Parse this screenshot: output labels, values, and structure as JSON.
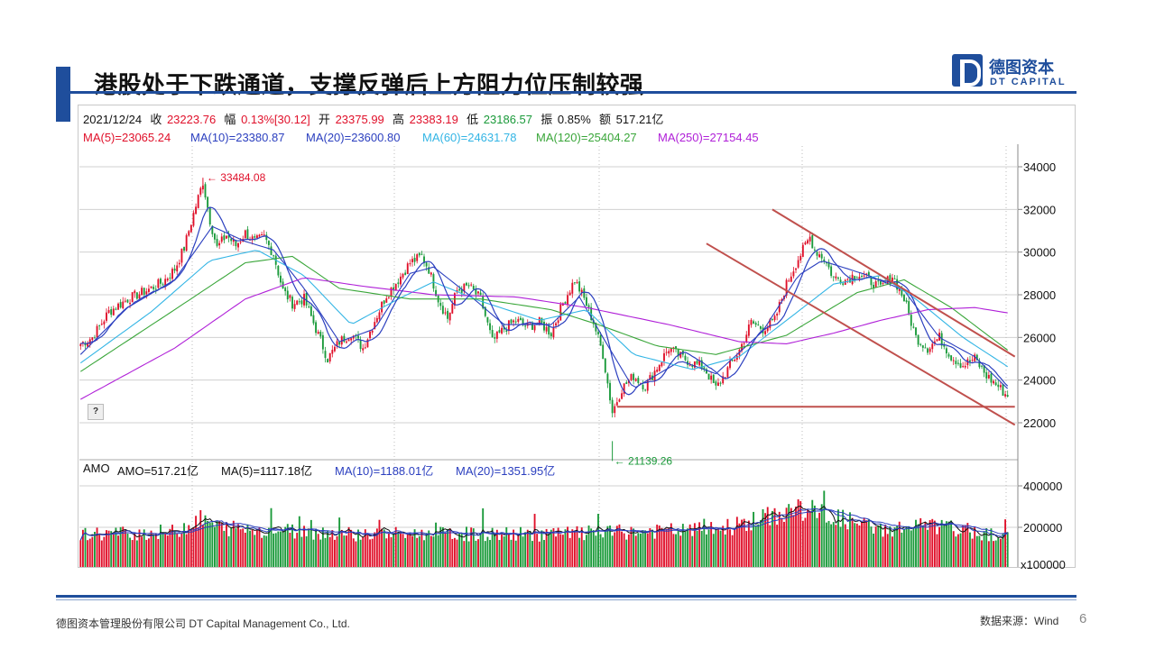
{
  "header": {
    "title": "港股处于下跌通道，支撑反弹后上方阻力位压制较强"
  },
  "logo": {
    "name_cn": "德图资本",
    "name_en": "DT CAPITAL"
  },
  "quote": {
    "date": "2021/12/24",
    "close_label": "收",
    "close": "23223.76",
    "change_label": "幅",
    "change": "0.13%[30.12]",
    "open_label": "开",
    "open": "23375.99",
    "high_label": "高",
    "high": "23383.19",
    "low_label": "低",
    "low": "23186.57",
    "amplitude_label": "振",
    "amplitude": "0.85%",
    "amount_label": "额",
    "amount": "517.21亿"
  },
  "ma_legend": {
    "ma5": "MA(5)=23065.24",
    "ma10": "MA(10)=23380.87",
    "ma20": "MA(20)=23600.80",
    "ma60": "MA(60)=24631.78",
    "ma120": "MA(120)=25404.27",
    "ma250": "MA(250)=27154.45"
  },
  "volume_legend": {
    "name": "AMO",
    "amo": "AMO=517.21亿",
    "ma5": "MA(5)=1117.18亿",
    "ma10": "MA(10)=1188.01亿",
    "ma20": "MA(20)=1351.95亿"
  },
  "help_label": "?",
  "footer": {
    "company": "德图资本管理股份有限公司  DT Capital Management  Co., Ltd.",
    "source": "数据来源：Wind",
    "page": "6"
  },
  "colors": {
    "brand": "#1f4e9c",
    "up": "#e0102a",
    "down": "#1a9a3a",
    "ma5": "#e0102a",
    "ma10": "#2b3fbf",
    "ma20": "#2b3fbf",
    "ma60": "#33b5e5",
    "ma120": "#3aa63a",
    "ma250": "#b020d8",
    "trendline": "#c0504d"
  },
  "chart_data": [
    {
      "type": "candlestick",
      "ylim": [
        20500,
        35000
      ],
      "y_ticks": [
        "34000",
        "32000",
        "30000",
        "28000",
        "26000",
        "24000",
        "22000"
      ],
      "annotations": [
        {
          "label": "33484.08",
          "value": 33484.08,
          "kind": "high"
        },
        {
          "label": "21139.26",
          "value": 21139.26,
          "kind": "low"
        }
      ],
      "price_path": [
        [
          0,
          25700
        ],
        [
          5,
          26000
        ],
        [
          12,
          27200
        ],
        [
          20,
          27800
        ],
        [
          28,
          28200
        ],
        [
          35,
          28600
        ],
        [
          40,
          29200
        ],
        [
          44,
          30200
        ],
        [
          48,
          31800
        ],
        [
          52,
          33300
        ],
        [
          55,
          31500
        ],
        [
          58,
          30200
        ],
        [
          62,
          30800
        ],
        [
          66,
          30300
        ],
        [
          70,
          30900
        ],
        [
          74,
          30500
        ],
        [
          78,
          30700
        ],
        [
          82,
          29900
        ],
        [
          86,
          28200
        ],
        [
          90,
          27600
        ],
        [
          95,
          27800
        ],
        [
          100,
          26400
        ],
        [
          105,
          25000
        ],
        [
          110,
          25800
        ],
        [
          115,
          26200
        ],
        [
          120,
          25500
        ],
        [
          125,
          26800
        ],
        [
          130,
          28000
        ],
        [
          135,
          28700
        ],
        [
          140,
          29500
        ],
        [
          145,
          29800
        ],
        [
          148,
          29200
        ],
        [
          152,
          27800
        ],
        [
          156,
          26900
        ],
        [
          160,
          28200
        ],
        [
          165,
          28400
        ],
        [
          170,
          27800
        ],
        [
          175,
          25800
        ],
        [
          180,
          26400
        ],
        [
          185,
          26800
        ],
        [
          190,
          26500
        ],
        [
          195,
          26700
        ],
        [
          200,
          26200
        ],
        [
          205,
          27600
        ],
        [
          210,
          28700
        ],
        [
          214,
          27800
        ],
        [
          218,
          26700
        ],
        [
          222,
          25200
        ],
        [
          226,
          22500
        ],
        [
          230,
          23600
        ],
        [
          235,
          24200
        ],
        [
          240,
          23700
        ],
        [
          245,
          24600
        ],
        [
          250,
          25500
        ],
        [
          255,
          25100
        ],
        [
          260,
          24800
        ],
        [
          265,
          24600
        ],
        [
          270,
          23600
        ],
        [
          275,
          24500
        ],
        [
          280,
          25400
        ],
        [
          285,
          26700
        ],
        [
          290,
          26400
        ],
        [
          295,
          26800
        ],
        [
          300,
          28500
        ],
        [
          305,
          29700
        ],
        [
          310,
          30700
        ],
        [
          312,
          30100
        ],
        [
          316,
          29700
        ],
        [
          320,
          28800
        ],
        [
          325,
          28700
        ],
        [
          330,
          29000
        ],
        [
          335,
          28700
        ],
        [
          340,
          28300
        ],
        [
          345,
          28900
        ],
        [
          350,
          27800
        ],
        [
          355,
          26000
        ],
        [
          360,
          25500
        ],
        [
          365,
          26000
        ],
        [
          370,
          25100
        ],
        [
          375,
          24700
        ],
        [
          380,
          25000
        ],
        [
          385,
          24200
        ],
        [
          390,
          23700
        ],
        [
          394,
          23223.76
        ]
      ],
      "ma_lines": [
        {
          "name": "MA(20)",
          "values": [
            [
              0,
              25200
            ],
            [
              20,
              27400
            ],
            [
              40,
              28700
            ],
            [
              56,
              31200
            ],
            [
              70,
              30500
            ],
            [
              82,
              30100
            ],
            [
              95,
              28300
            ],
            [
              110,
              25800
            ],
            [
              125,
              26400
            ],
            [
              140,
              29000
            ],
            [
              150,
              29300
            ],
            [
              165,
              28000
            ],
            [
              180,
              26600
            ],
            [
              200,
              26600
            ],
            [
              212,
              27900
            ],
            [
              222,
              26000
            ],
            [
              235,
              23600
            ],
            [
              255,
              24900
            ],
            [
              270,
              24300
            ],
            [
              290,
              26300
            ],
            [
              305,
              28900
            ],
            [
              315,
              29600
            ],
            [
              335,
              28900
            ],
            [
              350,
              28200
            ],
            [
              365,
              26000
            ],
            [
              380,
              25100
            ],
            [
              394,
              23600
            ]
          ]
        },
        {
          "name": "MA(60)",
          "values": [
            [
              0,
              24800
            ],
            [
              30,
              27200
            ],
            [
              55,
              29600
            ],
            [
              75,
              30100
            ],
            [
              95,
              28900
            ],
            [
              115,
              26600
            ],
            [
              135,
              27800
            ],
            [
              150,
              28600
            ],
            [
              170,
              27700
            ],
            [
              195,
              26800
            ],
            [
              215,
              27300
            ],
            [
              235,
              25200
            ],
            [
              260,
              24500
            ],
            [
              280,
              25100
            ],
            [
              300,
              26800
            ],
            [
              320,
              28500
            ],
            [
              340,
              28900
            ],
            [
              355,
              27800
            ],
            [
              375,
              26000
            ],
            [
              394,
              24630
            ]
          ]
        },
        {
          "name": "MA(120)",
          "values": [
            [
              0,
              24400
            ],
            [
              40,
              27300
            ],
            [
              70,
              29500
            ],
            [
              90,
              29800
            ],
            [
              110,
              28300
            ],
            [
              140,
              27800
            ],
            [
              170,
              27800
            ],
            [
              200,
              27300
            ],
            [
              220,
              26600
            ],
            [
              245,
              25600
            ],
            [
              270,
              25200
            ],
            [
              300,
              26100
            ],
            [
              330,
              28100
            ],
            [
              350,
              28700
            ],
            [
              370,
              27400
            ],
            [
              394,
              25400
            ]
          ]
        },
        {
          "name": "MA(250)",
          "values": [
            [
              0,
              23100
            ],
            [
              40,
              25500
            ],
            [
              70,
              27800
            ],
            [
              95,
              28800
            ],
            [
              120,
              28400
            ],
            [
              150,
              28000
            ],
            [
              185,
              27900
            ],
            [
              215,
              27400
            ],
            [
              250,
              26600
            ],
            [
              280,
              25800
            ],
            [
              300,
              25700
            ],
            [
              320,
              26200
            ],
            [
              340,
              26800
            ],
            [
              360,
              27300
            ],
            [
              380,
              27400
            ],
            [
              394,
              27150
            ]
          ]
        }
      ],
      "trendlines": [
        {
          "from": [
            294,
            32000
          ],
          "to": [
            394,
            25100
          ]
        },
        {
          "from": [
            266,
            30400
          ],
          "to": [
            394,
            21900
          ]
        },
        {
          "from": [
            228,
            22750
          ],
          "to": [
            394,
            22750
          ]
        }
      ]
    },
    {
      "type": "bar",
      "name": "AMO",
      "ylim": [
        100000,
        420000
      ],
      "y_ticks": [
        "400000",
        "200000"
      ],
      "y_unit": "x100000",
      "level_path": [
        [
          0,
          160000
        ],
        [
          40,
          170000
        ],
        [
          50,
          230000
        ],
        [
          60,
          190000
        ],
        [
          120,
          160000
        ],
        [
          200,
          160000
        ],
        [
          270,
          180000
        ],
        [
          290,
          230000
        ],
        [
          305,
          280000
        ],
        [
          320,
          240000
        ],
        [
          340,
          180000
        ],
        [
          360,
          200000
        ],
        [
          394,
          150000
        ]
      ]
    }
  ]
}
